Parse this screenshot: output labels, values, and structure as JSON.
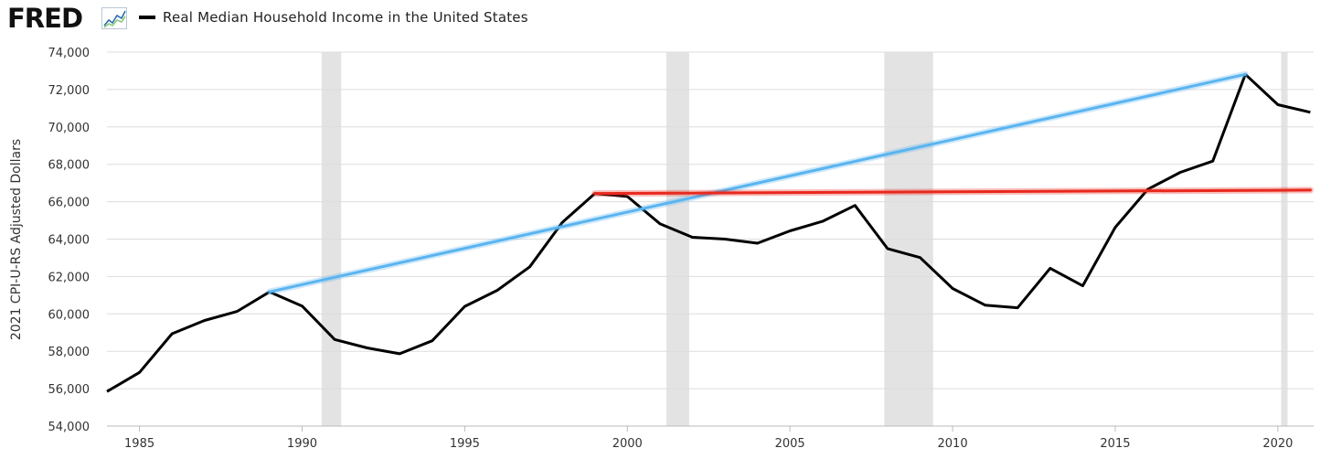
{
  "header": {
    "logo_text": "FRED",
    "logo_icon": "line-chart-icon",
    "legend_label": "Real Median Household Income in the United States"
  },
  "colors": {
    "series": "#000000",
    "blue_line": "#5ab4f0",
    "red_line": "#e8291e",
    "recession": "#e3e3e3",
    "grid": "#dddddd"
  },
  "chart_data": {
    "type": "line",
    "title": "Real Median Household Income in the United States",
    "ylabel": "2021 CPI-U-RS Adjusted Dollars",
    "xlabel": "",
    "xlim": [
      1984,
      2021.1
    ],
    "ylim": [
      54000,
      74000
    ],
    "grid": "horizontal",
    "yticks": [
      54000,
      56000,
      58000,
      60000,
      62000,
      64000,
      66000,
      68000,
      70000,
      72000,
      74000
    ],
    "ytick_labels": [
      "54,000",
      "56,000",
      "58,000",
      "60,000",
      "62,000",
      "64,000",
      "66,000",
      "68,000",
      "70,000",
      "72,000",
      "74,000"
    ],
    "xticks": [
      1985,
      1990,
      1995,
      2000,
      2005,
      2010,
      2015,
      2020
    ],
    "xtick_labels": [
      "1985",
      "1990",
      "1995",
      "2000",
      "2005",
      "2010",
      "2015",
      "2020"
    ],
    "series": [
      {
        "x": [
          1984,
          1985,
          1986,
          1987,
          1988,
          1989,
          1990,
          1991,
          1992,
          1993,
          1994,
          1995,
          1996,
          1997,
          1998,
          1999,
          2000,
          2001,
          2002,
          2003,
          2004,
          2005,
          2006,
          2007,
          2008,
          2009,
          2010,
          2011,
          2012,
          2013,
          2014,
          2015,
          2016,
          2017,
          2018,
          2019,
          2020,
          2021
        ],
        "values": [
          55850,
          56870,
          58940,
          59650,
          60130,
          61180,
          60420,
          58630,
          58180,
          57870,
          58560,
          60400,
          61260,
          62520,
          64890,
          66440,
          66280,
          64820,
          64100,
          64000,
          63780,
          64440,
          64950,
          65800,
          63490,
          63010,
          61360,
          60470,
          60330,
          62440,
          61500,
          64630,
          66660,
          67570,
          68170,
          72810,
          71190,
          70780
        ]
      }
    ],
    "recessions": [
      [
        1990.6,
        1991.2
      ],
      [
        2001.2,
        2001.9
      ],
      [
        2007.9,
        2009.4
      ],
      [
        2020.1,
        2020.3
      ]
    ],
    "annotation_lines": [
      {
        "color": "blue",
        "x": [
          1989,
          2019
        ],
        "values": [
          61180,
          72810
        ]
      },
      {
        "color": "red",
        "x": [
          1999,
          2021.0
        ],
        "values": [
          66440,
          66620
        ]
      }
    ]
  }
}
